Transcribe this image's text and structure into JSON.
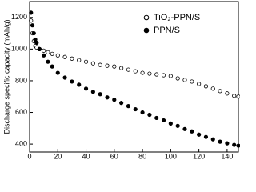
{
  "chart_data": {
    "type": "scatter",
    "y_label": "Discharge specific capacity (mAh/g)",
    "x": [
      1,
      2,
      3,
      4,
      5,
      7,
      10,
      13,
      16,
      20,
      25,
      30,
      35,
      40,
      45,
      50,
      55,
      60,
      65,
      70,
      75,
      80,
      85,
      90,
      95,
      100,
      105,
      110,
      115,
      120,
      125,
      130,
      135,
      140,
      145,
      148
    ],
    "series": [
      {
        "name": "TiO₂-PPN/S",
        "color": "#000000",
        "marker": "open",
        "values": [
          1180,
          1100,
          1050,
          1020,
          1010,
          1000,
          990,
          980,
          970,
          960,
          950,
          940,
          930,
          920,
          910,
          900,
          895,
          890,
          880,
          870,
          860,
          850,
          845,
          840,
          835,
          830,
          815,
          805,
          795,
          780,
          765,
          750,
          735,
          720,
          705,
          700
        ]
      },
      {
        "name": "PPN/S",
        "color": "#000000",
        "marker": "filled",
        "values": [
          1230,
          1150,
          1100,
          1060,
          1040,
          1000,
          960,
          920,
          890,
          850,
          820,
          795,
          775,
          750,
          730,
          715,
          695,
          680,
          660,
          640,
          620,
          600,
          585,
          565,
          550,
          530,
          515,
          495,
          480,
          460,
          445,
          430,
          415,
          405,
          395,
          390
        ]
      }
    ],
    "xlim": [
      0,
      148
    ],
    "ylim": [
      350,
      1300
    ],
    "xticks": [
      0,
      20,
      40,
      60,
      80,
      100,
      120,
      140
    ],
    "yticks": [
      400,
      600,
      800,
      1000,
      1200
    ],
    "legend": "upper right",
    "grid": false
  }
}
